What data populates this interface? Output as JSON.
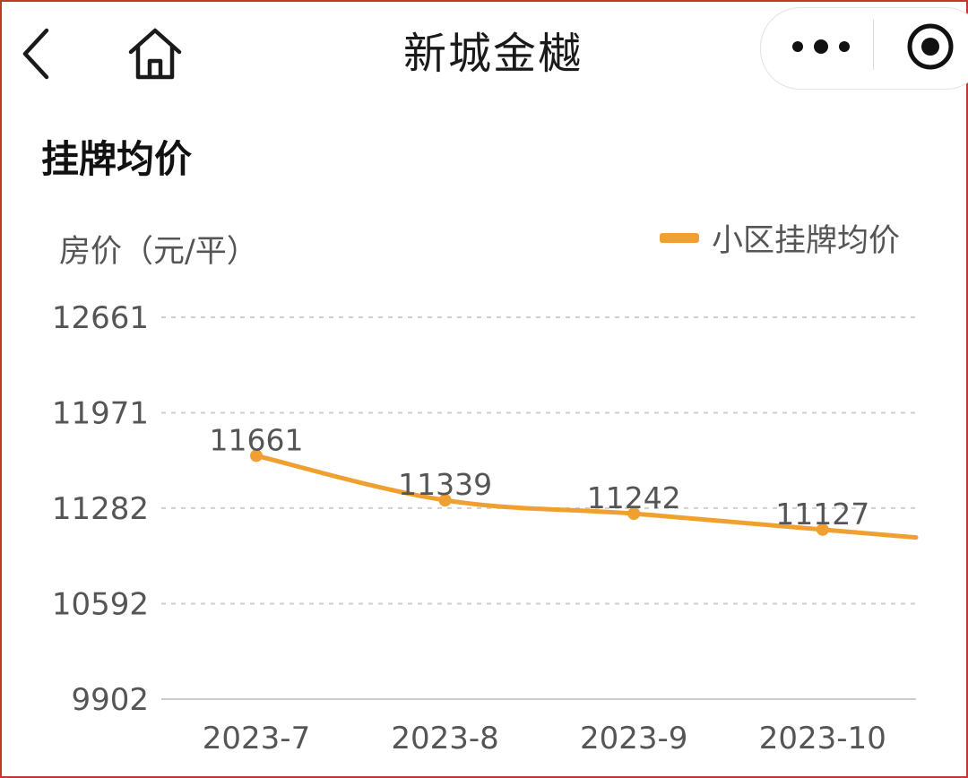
{
  "nav": {
    "title": "新城金樾",
    "back_icon": "chevron-left-icon",
    "home_icon": "home-icon",
    "more_icon": "more-dots-icon",
    "target_icon": "target-circle-icon"
  },
  "section": {
    "title": "挂牌均价"
  },
  "colors": {
    "accent": "#f0a030",
    "grid": "#cfcfcf",
    "axis_text": "#555555",
    "frame": "#c0392b"
  },
  "chart_data": {
    "type": "line",
    "ylabel": "房价（元/平）",
    "categories": [
      "2023-7",
      "2023-8",
      "2023-9",
      "2023-10"
    ],
    "series": [
      {
        "name": "小区挂牌均价",
        "values": [
          11661,
          11339,
          11242,
          11127
        ]
      }
    ],
    "ylim": [
      9902,
      12661
    ],
    "yticks": [
      "12661",
      "11971",
      "11282",
      "10592",
      "9902"
    ],
    "data_labels": [
      "11661",
      "11339",
      "11242",
      "11127"
    ],
    "grid": true,
    "legend": "top-right"
  }
}
